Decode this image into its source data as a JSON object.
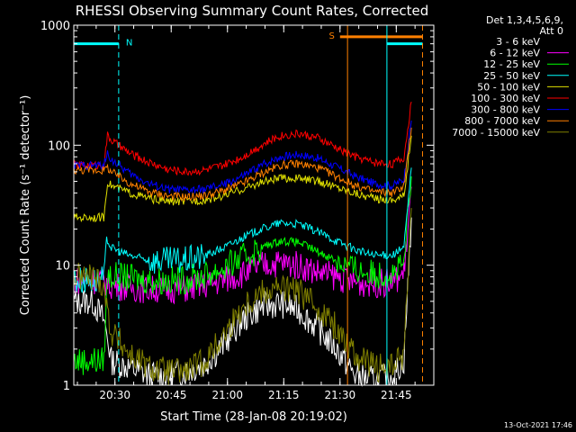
{
  "chart_data": {
    "type": "line",
    "title": "RHESSI Observing Summary Count Rates, Corrected",
    "xlabel": "Start Time (28-Jan-08 20:19:02)",
    "ylabel": "Corrected Count Rate (s⁻¹ detector⁻¹)",
    "yscale": "log",
    "ylim": [
      1,
      1000
    ],
    "xlim": [
      "20:19:02",
      "21:55:00"
    ],
    "x_ticks": [
      "20:30",
      "20:45",
      "21:00",
      "21:15",
      "21:30",
      "21:45"
    ],
    "y_ticks": [
      "1",
      "10",
      "100",
      "1000"
    ],
    "legend_header": [
      "Det 1,3,4,5,6,9,",
      "Att 0"
    ],
    "legend_position": "right",
    "footer_date": "13-Oct-2021 17:46",
    "flags": [
      {
        "label": "N",
        "color": "#00ffff",
        "start": "20:19:02",
        "end": "20:31:00",
        "level": 700
      },
      {
        "label": "S",
        "color": "#ff8000",
        "start": "21:30:00",
        "end": "21:52:00",
        "level": 800
      }
    ],
    "flag_segments": [
      {
        "color": "#00ffff",
        "start": "21:42:30",
        "end": "21:52:00",
        "level": 700
      }
    ],
    "vertical_markers": [
      {
        "time": "20:31:00",
        "color": "#00ffff",
        "dashed": true
      },
      {
        "time": "21:32:00",
        "color": "#ff8000",
        "dashed": false
      },
      {
        "time": "21:42:30",
        "color": "#00ffff",
        "dashed": false
      },
      {
        "time": "21:52:00",
        "color": "#ff8000",
        "dashed": true
      }
    ],
    "x_times_min": [
      0,
      5,
      8,
      9,
      10,
      15,
      20,
      25,
      30,
      35,
      40,
      45,
      50,
      55,
      60,
      65,
      70,
      75,
      80,
      85,
      88,
      90
    ],
    "series": [
      {
        "name": "3 - 6 keV",
        "color": "#ffffff",
        "legend_line_color": "#000000",
        "values": [
          5,
          5,
          3.5,
          2.5,
          1.6,
          1.4,
          1.2,
          1.2,
          1.3,
          1.5,
          2.2,
          3.5,
          4.5,
          4.8,
          4.2,
          3,
          2,
          1.2,
          1.1,
          1.2,
          1.6,
          25
        ]
      },
      {
        "name": "6 - 12 keV",
        "color": "#ff00ff",
        "values": [
          7.5,
          7.5,
          7.5,
          7,
          6.8,
          6.5,
          6.3,
          6.3,
          6.4,
          6.8,
          7.5,
          8.5,
          10,
          10.5,
          10,
          8.8,
          8,
          7.2,
          7,
          7.2,
          8.5,
          45
        ]
      },
      {
        "name": "12 - 25 keV",
        "color": "#00ff00",
        "values": [
          1.6,
          1.6,
          1.6,
          8.5,
          8.2,
          7.8,
          7.5,
          7.4,
          7.6,
          8.2,
          9.5,
          11.5,
          14,
          16,
          15.5,
          13,
          11,
          9.2,
          8.4,
          8.5,
          10,
          55
        ]
      },
      {
        "name": "25 - 50 keV",
        "color": "#00ffff",
        "values": [
          7.5,
          7.5,
          7.5,
          16,
          14,
          12,
          11,
          10.8,
          11,
          12,
          14,
          17,
          20,
          22.5,
          22,
          19,
          16,
          13.5,
          12,
          12.2,
          14,
          65
        ]
      },
      {
        "name": "50 - 100 keV",
        "color": "#e0e000",
        "values": [
          25,
          25,
          25,
          50,
          46,
          40,
          36,
          34,
          34,
          35,
          38,
          43,
          49,
          53,
          53,
          50,
          45,
          40,
          36,
          35,
          38,
          120
        ]
      },
      {
        "name": "100 - 300 keV",
        "color": "#ff0000",
        "values": [
          68,
          68,
          68,
          120,
          110,
          85,
          72,
          63,
          60,
          62,
          68,
          80,
          100,
          120,
          125,
          115,
          95,
          80,
          72,
          70,
          78,
          230
        ]
      },
      {
        "name": "300 - 800 keV",
        "color": "#0000ff",
        "values": [
          68,
          68,
          68,
          85,
          76,
          58,
          48,
          43,
          42,
          43,
          47,
          55,
          68,
          80,
          84,
          78,
          66,
          55,
          48,
          46,
          52,
          160
        ]
      },
      {
        "name": "800 - 7000 keV",
        "color": "#ff8000",
        "values": [
          62,
          62,
          62,
          65,
          60,
          48,
          41,
          38,
          37,
          38,
          42,
          48,
          58,
          68,
          70,
          65,
          55,
          46,
          41,
          40,
          46,
          140
        ]
      },
      {
        "name": "7000 - 15000 keV",
        "color": "#808000",
        "values": [
          8,
          8,
          7,
          4,
          2.8,
          1.8,
          1.4,
          1.3,
          1.3,
          1.6,
          2.6,
          4.5,
          6,
          6.5,
          6,
          4.5,
          3,
          1.8,
          1.4,
          1.4,
          1.8,
          30
        ]
      }
    ]
  }
}
